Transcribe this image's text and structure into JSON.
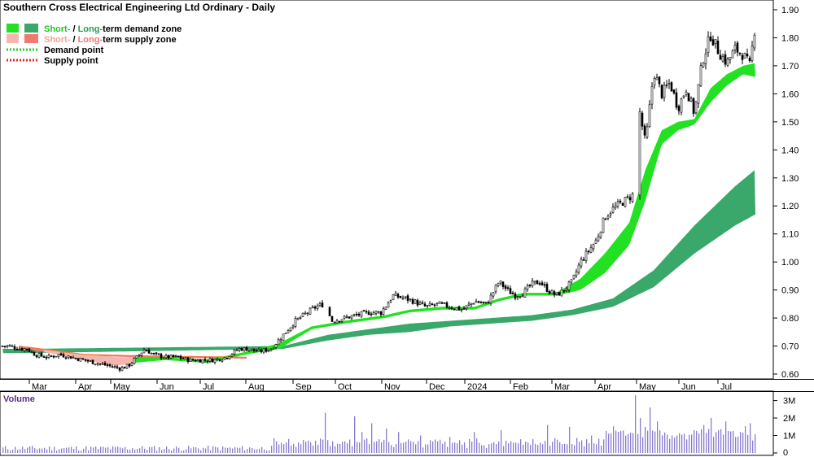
{
  "title": "Southern Cross Electrical Engineering Ltd Ordinary - Daily",
  "legend": {
    "demand_short": "Short-",
    "demand_sep": " / ",
    "demand_long": "Long-",
    "demand_rest": "term demand zone",
    "supply_short": "Short-",
    "supply_sep": " / ",
    "supply_long": "Long-",
    "supply_rest": "term supply zone",
    "demand_point": "Demand point",
    "supply_point": "Supply point"
  },
  "volume_title": "Volume",
  "colors": {
    "short_demand": "#22e122",
    "long_demand": "#3aa86a",
    "short_supply": "#f6b6b0",
    "long_supply": "#f07a6e",
    "demand_point": "#2ec52e",
    "supply_point": "#e8251b",
    "candle": "#000000",
    "volume_bar": "#8a7bd0",
    "orange_line": "#f07a3a"
  },
  "chart_data": {
    "type": "line",
    "x_axis_labels": [
      "Mar",
      "Apr",
      "May",
      "Jun",
      "Jul",
      "Aug",
      "Sep",
      "Oct",
      "Nov",
      "Dec",
      "2024",
      "Feb",
      "Mar",
      "Apr",
      "May",
      "Jun",
      "Jul"
    ],
    "y_ticks": [
      "1.90",
      "1.80",
      "1.70",
      "1.60",
      "1.50",
      "1.40",
      "1.30",
      "1.20",
      "1.10",
      "1.00",
      "0.90",
      "0.80",
      "0.70",
      "0.60"
    ],
    "ylim": [
      0.57,
      1.92
    ],
    "volume_ticks": [
      "3M",
      "2M",
      "1M",
      "0"
    ],
    "volume_ylim": [
      0,
      3.4
    ],
    "series": [
      {
        "name": "Price",
        "kind": "close",
        "points": [
          [
            0,
            0.7
          ],
          [
            10,
            0.7
          ],
          [
            20,
            0.69
          ],
          [
            30,
            0.69
          ],
          [
            40,
            0.67
          ],
          [
            55,
            0.66
          ],
          [
            70,
            0.67
          ],
          [
            85,
            0.66
          ],
          [
            100,
            0.65
          ],
          [
            115,
            0.64
          ],
          [
            130,
            0.63
          ],
          [
            145,
            0.62
          ],
          [
            155,
            0.63
          ],
          [
            165,
            0.66
          ],
          [
            175,
            0.69
          ],
          [
            185,
            0.67
          ],
          [
            200,
            0.66
          ],
          [
            215,
            0.66
          ],
          [
            230,
            0.65
          ],
          [
            245,
            0.65
          ],
          [
            260,
            0.65
          ],
          [
            275,
            0.66
          ],
          [
            290,
            0.69
          ],
          [
            300,
            0.69
          ],
          [
            315,
            0.68
          ],
          [
            330,
            0.69
          ],
          [
            345,
            0.74
          ],
          [
            360,
            0.79
          ],
          [
            375,
            0.82
          ],
          [
            385,
            0.84
          ],
          [
            395,
            0.85
          ],
          [
            405,
            0.79
          ],
          [
            420,
            0.8
          ],
          [
            435,
            0.81
          ],
          [
            450,
            0.82
          ],
          [
            465,
            0.82
          ],
          [
            480,
            0.88
          ],
          [
            495,
            0.87
          ],
          [
            505,
            0.86
          ],
          [
            520,
            0.84
          ],
          [
            535,
            0.85
          ],
          [
            550,
            0.84
          ],
          [
            565,
            0.83
          ],
          [
            580,
            0.86
          ],
          [
            595,
            0.85
          ],
          [
            610,
            0.93
          ],
          [
            620,
            0.9
          ],
          [
            630,
            0.88
          ],
          [
            640,
            0.89
          ],
          [
            650,
            0.92
          ],
          [
            660,
            0.93
          ],
          [
            670,
            0.9
          ],
          [
            680,
            0.88
          ],
          [
            690,
            0.9
          ],
          [
            700,
            0.93
          ],
          [
            710,
            1.0
          ],
          [
            720,
            1.04
          ],
          [
            730,
            1.08
          ],
          [
            740,
            1.16
          ],
          [
            750,
            1.19
          ],
          [
            760,
            1.21
          ],
          [
            775,
            1.24
          ],
          [
            782,
            1.55
          ],
          [
            790,
            1.42
          ],
          [
            800,
            1.68
          ],
          [
            810,
            1.6
          ],
          [
            820,
            1.64
          ],
          [
            830,
            1.55
          ],
          [
            840,
            1.62
          ],
          [
            850,
            1.53
          ],
          [
            860,
            1.72
          ],
          [
            870,
            1.81
          ],
          [
            880,
            1.75
          ],
          [
            890,
            1.71
          ],
          [
            900,
            1.76
          ],
          [
            910,
            1.74
          ],
          [
            918,
            1.7
          ],
          [
            925,
            1.85
          ]
        ]
      },
      {
        "name": "Short-term demand zone",
        "kind": "band",
        "upper": [
          [
            160,
            0.66
          ],
          [
            200,
            0.66
          ],
          [
            250,
            0.65
          ],
          [
            300,
            0.68
          ],
          [
            340,
            0.71
          ],
          [
            380,
            0.77
          ],
          [
            420,
            0.79
          ],
          [
            470,
            0.81
          ],
          [
            500,
            0.83
          ],
          [
            540,
            0.84
          ],
          [
            580,
            0.84
          ],
          [
            610,
            0.87
          ],
          [
            640,
            0.89
          ],
          [
            680,
            0.89
          ],
          [
            710,
            0.94
          ],
          [
            740,
            1.03
          ],
          [
            770,
            1.14
          ],
          [
            790,
            1.33
          ],
          [
            810,
            1.47
          ],
          [
            830,
            1.5
          ],
          [
            850,
            1.51
          ],
          [
            870,
            1.62
          ],
          [
            890,
            1.67
          ],
          [
            910,
            1.7
          ],
          [
            925,
            1.71
          ]
        ],
        "lower": [
          [
            160,
            0.64
          ],
          [
            200,
            0.65
          ],
          [
            250,
            0.64
          ],
          [
            300,
            0.67
          ],
          [
            340,
            0.69
          ],
          [
            380,
            0.76
          ],
          [
            420,
            0.78
          ],
          [
            470,
            0.8
          ],
          [
            500,
            0.82
          ],
          [
            540,
            0.83
          ],
          [
            580,
            0.83
          ],
          [
            610,
            0.86
          ],
          [
            640,
            0.88
          ],
          [
            680,
            0.88
          ],
          [
            710,
            0.9
          ],
          [
            740,
            0.96
          ],
          [
            770,
            1.06
          ],
          [
            790,
            1.22
          ],
          [
            810,
            1.42
          ],
          [
            830,
            1.47
          ],
          [
            850,
            1.49
          ],
          [
            870,
            1.57
          ],
          [
            890,
            1.63
          ],
          [
            910,
            1.67
          ],
          [
            925,
            1.66
          ]
        ]
      },
      {
        "name": "Long-term demand zone",
        "kind": "band",
        "upper": [
          [
            0,
            0.69
          ],
          [
            30,
            0.69
          ],
          [
            345,
            0.7
          ],
          [
            400,
            0.74
          ],
          [
            450,
            0.76
          ],
          [
            500,
            0.78
          ],
          [
            550,
            0.79
          ],
          [
            600,
            0.8
          ],
          [
            650,
            0.81
          ],
          [
            700,
            0.83
          ],
          [
            750,
            0.87
          ],
          [
            800,
            0.97
          ],
          [
            850,
            1.13
          ],
          [
            900,
            1.27
          ],
          [
            925,
            1.33
          ]
        ],
        "lower": [
          [
            0,
            0.675
          ],
          [
            30,
            0.675
          ],
          [
            345,
            0.69
          ],
          [
            400,
            0.72
          ],
          [
            450,
            0.74
          ],
          [
            500,
            0.75
          ],
          [
            550,
            0.77
          ],
          [
            600,
            0.78
          ],
          [
            650,
            0.79
          ],
          [
            700,
            0.81
          ],
          [
            750,
            0.84
          ],
          [
            800,
            0.91
          ],
          [
            850,
            1.03
          ],
          [
            900,
            1.13
          ],
          [
            925,
            1.17
          ]
        ]
      },
      {
        "name": "Short-term supply zone",
        "kind": "band",
        "upper": [
          [
            50,
            0.69
          ],
          [
            100,
            0.67
          ],
          [
            140,
            0.66
          ],
          [
            165,
            0.66
          ]
        ],
        "lower": [
          [
            50,
            0.68
          ],
          [
            100,
            0.65
          ],
          [
            140,
            0.63
          ],
          [
            165,
            0.64
          ]
        ]
      },
      {
        "name": "Long-term supply zone",
        "kind": "band",
        "upper": [
          [
            20,
            0.7
          ],
          [
            100,
            0.67
          ],
          [
            170,
            0.665
          ],
          [
            300,
            0.66
          ]
        ],
        "lower": [
          [
            20,
            0.69
          ],
          [
            100,
            0.665
          ],
          [
            170,
            0.66
          ],
          [
            300,
            0.655
          ]
        ]
      }
    ]
  }
}
